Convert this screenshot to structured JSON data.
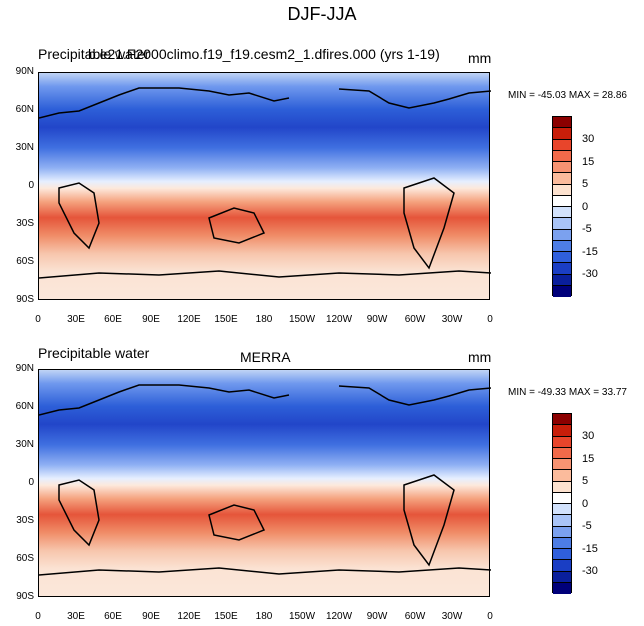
{
  "title": "DJF-JJA",
  "panels": [
    {
      "left_label": "Precipitable water",
      "center_label": "b.e21.F2000climo.f19_f19.cesm2_1.dfires.000 (yrs 1-19)",
      "units": "mm",
      "min_max": "MIN = -45.03 MAX =  28.86"
    },
    {
      "left_label": "Precipitable water",
      "center_label": "MERRA",
      "units": "mm",
      "min_max": "MIN = -49.33 MAX =  33.77"
    }
  ],
  "lat_ticks": [
    "90N",
    "60N",
    "30N",
    "0",
    "30S",
    "60S",
    "90S"
  ],
  "lon_ticks": [
    "0",
    "30E",
    "60E",
    "90E",
    "120E",
    "150E",
    "180",
    "150W",
    "120W",
    "90W",
    "60W",
    "30W",
    "0"
  ],
  "colorbar": {
    "labels": [
      "30",
      "15",
      "5",
      "0",
      "-5",
      "-15",
      "-30"
    ],
    "colors": [
      "#8b0000",
      "#c81e0a",
      "#e8452b",
      "#f26a4a",
      "#f79372",
      "#fbbb9c",
      "#fde2cf",
      "#ffffff",
      "#d2e2fc",
      "#a9c4f7",
      "#7ba1ef",
      "#4d7de5",
      "#2f5fdc",
      "#1a3ec4",
      "#0a1f9c",
      "#00007a"
    ]
  }
}
